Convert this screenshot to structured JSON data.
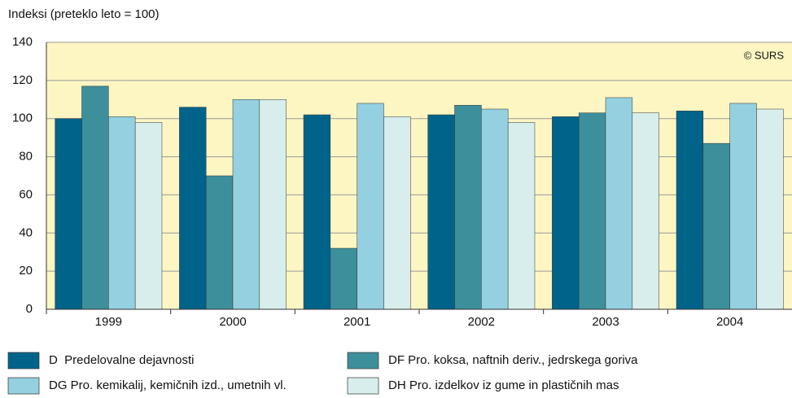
{
  "chart_data": {
    "type": "bar",
    "title": "Indeksi (preteklo leto = 100)",
    "annotation": "© SURS",
    "categories": [
      "1999",
      "2000",
      "2001",
      "2002",
      "2003",
      "2004"
    ],
    "series": [
      {
        "name": "D  Predelovalne dejavnosti",
        "color": "#00648a",
        "values": [
          100,
          106,
          102,
          102,
          101,
          104
        ]
      },
      {
        "name": "DF Pro. koksa, naftnih deriv., jedrskega goriva",
        "color": "#3e8f9c",
        "values": [
          117,
          70,
          32,
          107,
          103,
          87
        ]
      },
      {
        "name": "DG Pro. kemikalij, kemičnih izd., umetnih vl.",
        "color": "#94d0e0",
        "values": [
          101,
          110,
          108,
          105,
          111,
          108
        ]
      },
      {
        "name": "DH Pro. izdelkov iz gume in plastičnih mas",
        "color": "#d8eeec",
        "values": [
          98,
          110,
          101,
          98,
          103,
          105
        ]
      }
    ],
    "ylim": [
      0,
      140
    ],
    "yticks": [
      0,
      20,
      40,
      60,
      80,
      100,
      120,
      140
    ],
    "grid": true,
    "background": "#fdf6c3"
  }
}
